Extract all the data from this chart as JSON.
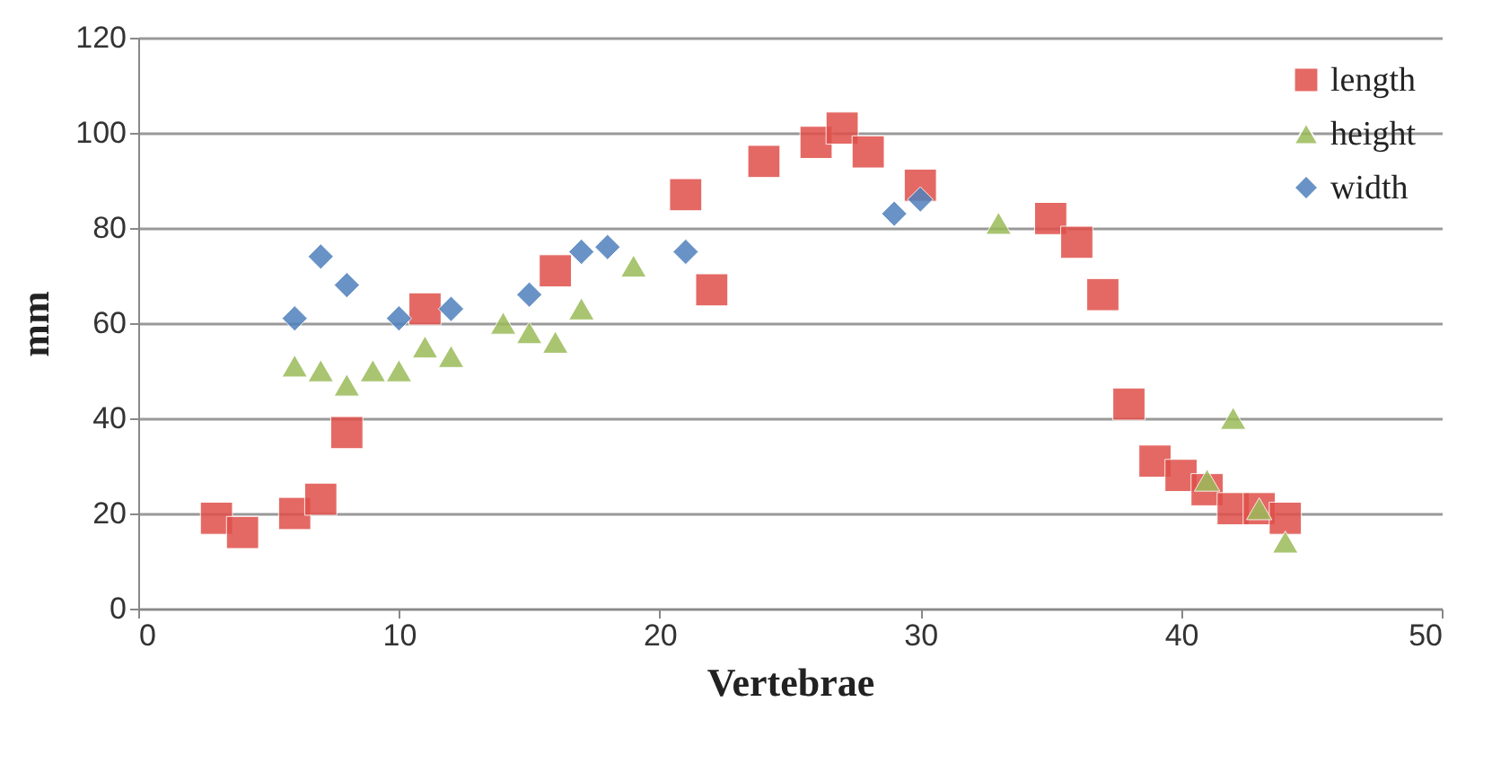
{
  "chart_data": {
    "type": "scatter",
    "xlabel": "Vertebrae",
    "ylabel": "mm",
    "xlim": [
      0,
      50
    ],
    "xticks": [
      0,
      10,
      20,
      30,
      40,
      50
    ],
    "ylim": [
      0,
      120
    ],
    "yticks": [
      0,
      20,
      40,
      60,
      80,
      100,
      120
    ],
    "grid": "y",
    "legend": "top right",
    "series": [
      {
        "name": "length",
        "color": "#e0504a",
        "marker": "square",
        "x": [
          3,
          4,
          6,
          7,
          8,
          11,
          16,
          21,
          22,
          24,
          26,
          27,
          28,
          30,
          35,
          36,
          37,
          38,
          39,
          40,
          41,
          42,
          43,
          44
        ],
        "values": [
          19,
          16,
          20,
          23,
          37,
          63,
          71,
          87,
          67,
          94,
          98,
          101,
          96,
          89,
          82,
          77,
          66,
          43,
          31,
          28,
          25,
          21,
          21,
          19
        ]
      },
      {
        "name": "height",
        "color": "#9bbb59",
        "marker": "triangle",
        "x": [
          6,
          7,
          8,
          9,
          10,
          11,
          12,
          14,
          15,
          16,
          17,
          19,
          33,
          41,
          42,
          43,
          44
        ],
        "values": [
          51,
          50,
          47,
          50,
          50,
          55,
          53,
          60,
          58,
          56,
          63,
          72,
          81,
          27,
          40,
          21,
          14
        ]
      },
      {
        "name": "width",
        "color": "#4f81bd",
        "marker": "diamond",
        "x": [
          6,
          7,
          8,
          10,
          12,
          15,
          17,
          18,
          21,
          29,
          30
        ],
        "values": [
          61,
          74,
          68,
          61,
          63,
          66,
          75,
          76,
          75,
          83,
          86
        ]
      }
    ]
  }
}
